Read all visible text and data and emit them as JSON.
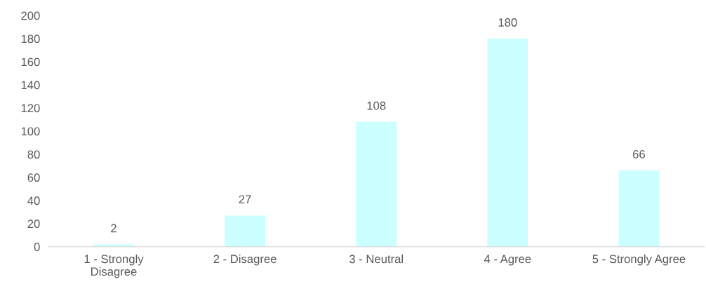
{
  "chart_data": {
    "type": "bar",
    "categories": [
      "1 - Strongly\nDisagree",
      "2 - Disagree",
      "3 - Neutral",
      "4 - Agree",
      "5 - Strongly Agree"
    ],
    "values": [
      2,
      27,
      108,
      180,
      66
    ],
    "color": "#ccffff",
    "ylim": [
      0,
      200
    ],
    "yticks": [
      0,
      20,
      40,
      60,
      80,
      100,
      120,
      140,
      160,
      180,
      200
    ],
    "grid": false,
    "data_labels": true
  }
}
